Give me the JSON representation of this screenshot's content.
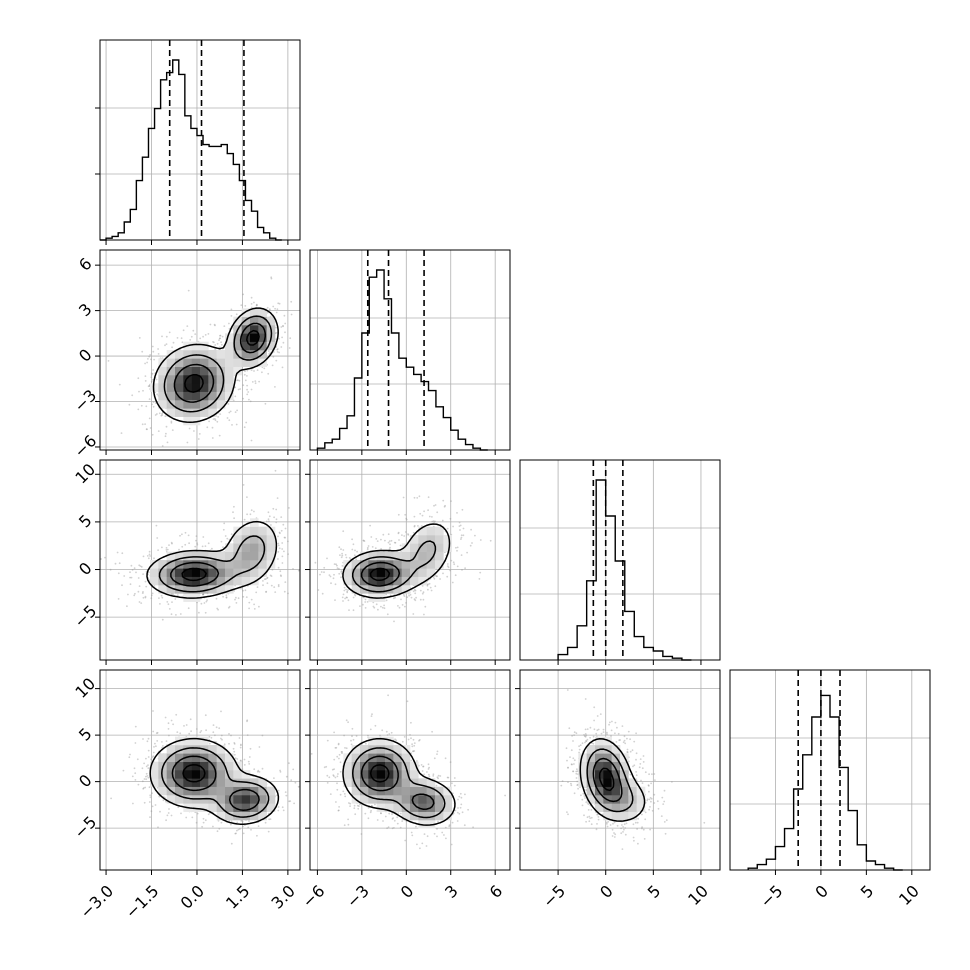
{
  "chart_data": {
    "type": "corner",
    "variables": 4,
    "grid": true,
    "quantile_lines": "dashed",
    "diagonal": [
      {
        "type": "histogram",
        "x_range": [
          -3.2,
          3.4
        ],
        "quantiles": [
          -0.9,
          0.15,
          1.55
        ],
        "bins": [
          [
            -3.2,
            0.0
          ],
          [
            -3.0,
            0.01
          ],
          [
            -2.8,
            0.02
          ],
          [
            -2.6,
            0.04
          ],
          [
            -2.4,
            0.1
          ],
          [
            -2.2,
            0.17
          ],
          [
            -2.0,
            0.33
          ],
          [
            -1.8,
            0.46
          ],
          [
            -1.6,
            0.62
          ],
          [
            -1.4,
            0.73
          ],
          [
            -1.2,
            0.89
          ],
          [
            -1.0,
            0.93
          ],
          [
            -0.8,
            1.0
          ],
          [
            -0.6,
            0.92
          ],
          [
            -0.4,
            0.69
          ],
          [
            -0.2,
            0.62
          ],
          [
            0.0,
            0.58
          ],
          [
            0.2,
            0.53
          ],
          [
            0.4,
            0.52
          ],
          [
            0.6,
            0.52
          ],
          [
            0.8,
            0.53
          ],
          [
            1.0,
            0.48
          ],
          [
            1.2,
            0.42
          ],
          [
            1.4,
            0.33
          ],
          [
            1.6,
            0.22
          ],
          [
            1.8,
            0.16
          ],
          [
            2.0,
            0.07
          ],
          [
            2.2,
            0.04
          ],
          [
            2.4,
            0.01
          ],
          [
            2.6,
            0.0
          ]
        ]
      },
      {
        "type": "histogram",
        "x_range": [
          -6.5,
          7.0
        ],
        "quantiles": [
          -2.6,
          -1.2,
          1.2
        ],
        "bins": [
          [
            -6.0,
            0.01
          ],
          [
            -5.5,
            0.04
          ],
          [
            -5.0,
            0.06
          ],
          [
            -4.5,
            0.12
          ],
          [
            -4.0,
            0.19
          ],
          [
            -3.5,
            0.4
          ],
          [
            -3.0,
            0.65
          ],
          [
            -2.5,
            0.96
          ],
          [
            -2.0,
            1.0
          ],
          [
            -1.5,
            0.84
          ],
          [
            -1.0,
            0.65
          ],
          [
            -0.5,
            0.51
          ],
          [
            0.0,
            0.46
          ],
          [
            0.5,
            0.42
          ],
          [
            1.0,
            0.38
          ],
          [
            1.5,
            0.33
          ],
          [
            2.0,
            0.24
          ],
          [
            2.5,
            0.18
          ],
          [
            3.0,
            0.11
          ],
          [
            3.5,
            0.06
          ],
          [
            4.0,
            0.03
          ],
          [
            4.5,
            0.01
          ],
          [
            5.0,
            0.0
          ]
        ]
      },
      {
        "type": "histogram",
        "x_range": [
          -9.0,
          12.0
        ],
        "quantiles": [
          -1.3,
          0.0,
          1.8
        ],
        "bins": [
          [
            -5.0,
            0.03
          ],
          [
            -4.0,
            0.07
          ],
          [
            -3.0,
            0.19
          ],
          [
            -2.0,
            0.44
          ],
          [
            -1.0,
            1.0
          ],
          [
            0.0,
            0.8
          ],
          [
            1.0,
            0.55
          ],
          [
            2.0,
            0.27
          ],
          [
            3.0,
            0.13
          ],
          [
            4.0,
            0.07
          ],
          [
            5.0,
            0.05
          ],
          [
            6.0,
            0.02
          ],
          [
            7.0,
            0.01
          ],
          [
            8.0,
            0.0
          ]
        ]
      },
      {
        "type": "histogram",
        "x_range": [
          -10.0,
          12.0
        ],
        "quantiles": [
          -2.5,
          0.0,
          2.1
        ],
        "bins": [
          [
            -8.0,
            0.01
          ],
          [
            -7.0,
            0.03
          ],
          [
            -6.0,
            0.06
          ],
          [
            -5.0,
            0.13
          ],
          [
            -4.0,
            0.23
          ],
          [
            -3.0,
            0.45
          ],
          [
            -2.0,
            0.64
          ],
          [
            -1.0,
            0.85
          ],
          [
            0.0,
            0.97
          ],
          [
            1.0,
            0.85
          ],
          [
            2.0,
            0.57
          ],
          [
            3.0,
            0.33
          ],
          [
            4.0,
            0.14
          ],
          [
            5.0,
            0.05
          ],
          [
            6.0,
            0.03
          ],
          [
            7.0,
            0.01
          ],
          [
            8.0,
            0.0
          ]
        ]
      }
    ],
    "panels": [
      {
        "row": 1,
        "col": 0,
        "x_range": [
          -3.2,
          3.4
        ],
        "y_range": [
          -6.2,
          7.0
        ],
        "clusters": [
          {
            "cx": -0.1,
            "cy": -1.8,
            "sx": 0.65,
            "sy": 1.25,
            "rho": 0.1,
            "w": 0.68
          },
          {
            "cx": 1.85,
            "cy": 1.2,
            "sx": 0.4,
            "sy": 0.95,
            "rho": 0.2,
            "w": 0.32
          }
        ]
      },
      {
        "row": 2,
        "col": 0,
        "x_range": [
          -3.2,
          3.4
        ],
        "y_range": [
          -9.5,
          11.5
        ],
        "clusters": [
          {
            "cx": -0.1,
            "cy": -0.5,
            "sx": 0.75,
            "sy": 1.2,
            "rho": 0.05,
            "w": 0.68
          },
          {
            "cx": 1.8,
            "cy": 1.9,
            "sx": 0.5,
            "sy": 1.9,
            "rho": 0.2,
            "w": 0.32
          }
        ]
      },
      {
        "row": 2,
        "col": 1,
        "x_range": [
          -6.5,
          7.0
        ],
        "y_range": [
          -9.5,
          11.5
        ],
        "clusters": [
          {
            "cx": -1.8,
            "cy": -0.5,
            "sx": 1.2,
            "sy": 1.2,
            "rho": 0.05,
            "w": 0.68
          },
          {
            "cx": 1.4,
            "cy": 1.9,
            "sx": 1.0,
            "sy": 1.9,
            "rho": 0.3,
            "w": 0.32
          }
        ]
      },
      {
        "row": 3,
        "col": 0,
        "x_range": [
          -3.2,
          3.4
        ],
        "y_range": [
          -9.5,
          12.0
        ],
        "clusters": [
          {
            "cx": -0.1,
            "cy": 0.9,
            "sx": 0.7,
            "sy": 1.8,
            "rho": 0.0,
            "w": 0.68
          },
          {
            "cx": 1.6,
            "cy": -2.0,
            "sx": 0.55,
            "sy": 1.3,
            "rho": 0.1,
            "w": 0.32
          }
        ]
      },
      {
        "row": 3,
        "col": 1,
        "x_range": [
          -6.5,
          7.0
        ],
        "y_range": [
          -9.5,
          12.0
        ],
        "clusters": [
          {
            "cx": -1.8,
            "cy": 0.9,
            "sx": 1.2,
            "sy": 1.8,
            "rho": 0.0,
            "w": 0.68
          },
          {
            "cx": 1.2,
            "cy": -2.2,
            "sx": 1.1,
            "sy": 1.3,
            "rho": -0.1,
            "w": 0.32
          }
        ]
      },
      {
        "row": 3,
        "col": 2,
        "x_range": [
          -9.0,
          12.0
        ],
        "y_range": [
          -9.5,
          12.0
        ],
        "clusters": [
          {
            "cx": 0.0,
            "cy": 0.5,
            "sx": 1.3,
            "sy": 2.0,
            "rho": -0.2,
            "w": 0.8
          },
          {
            "cx": 2.0,
            "cy": -2.0,
            "sx": 1.5,
            "sy": 1.4,
            "rho": -0.1,
            "w": 0.2
          }
        ]
      }
    ],
    "ticks": {
      "col0_x": {
        "values": [
          -3.0,
          -1.5,
          0.0,
          1.5,
          3.0
        ],
        "labels": [
          "−3.0",
          "−1.5",
          "0.0",
          "1.5",
          "3.0"
        ]
      },
      "col1_x": {
        "values": [
          -6,
          -3,
          0,
          3,
          6
        ],
        "labels": [
          "−6",
          "−3",
          "0",
          "3",
          "6"
        ]
      },
      "col2_x": {
        "values": [
          -5,
          0,
          5,
          10
        ],
        "labels": [
          "−5",
          "0",
          "5",
          "10"
        ]
      },
      "col3_x": {
        "values": [
          -5,
          0,
          5,
          10
        ],
        "labels": [
          "−5",
          "0",
          "5",
          "10"
        ]
      },
      "row1_y": {
        "values": [
          -6,
          -3,
          0,
          3,
          6
        ],
        "labels": [
          "−6",
          "−3",
          "0",
          "3",
          "6"
        ]
      },
      "row2_y": {
        "values": [
          -5,
          0,
          5,
          10
        ],
        "labels": [
          "−5",
          "0",
          "5",
          "10"
        ]
      },
      "row3_y": {
        "values": [
          -5,
          0,
          5,
          10
        ],
        "labels": [
          "−5",
          "0",
          "5",
          "10"
        ]
      }
    }
  }
}
